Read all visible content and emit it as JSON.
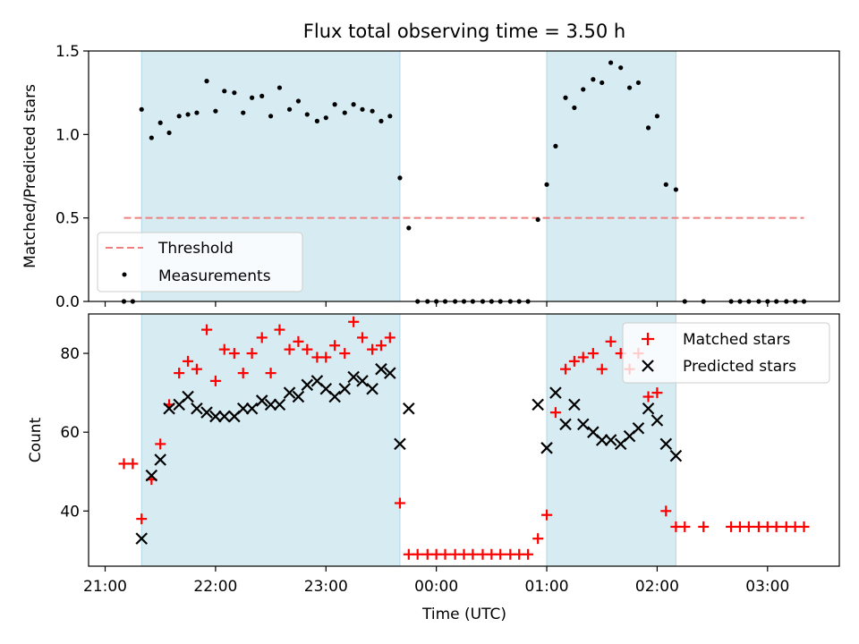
{
  "figure": {
    "title": "Flux total observing time = 3.50 h",
    "xlabel": "Time (UTC)",
    "x_tick_labels": [
      "21:00",
      "22:00",
      "23:00",
      "00:00",
      "01:00",
      "02:00",
      "03:00"
    ],
    "colors": {
      "shade": "#add8e6",
      "threshold": "#f08080",
      "measurement": "#000000",
      "matched": "#ff0000",
      "predicted": "#000000"
    }
  },
  "chart_data": [
    {
      "type": "scatter",
      "ylabel": "Matched/Predicted stars",
      "x_unit": "hours since 21:00 UTC",
      "xlim": [
        -0.15,
        6.65
      ],
      "ylim": [
        0,
        1.5
      ],
      "y_tick_labels": [
        "0.0",
        "0.5",
        "1.0",
        "1.5"
      ],
      "y_ticks": [
        0,
        0.5,
        1.0,
        1.5
      ],
      "shaded_spans": [
        [
          0.33,
          2.67
        ],
        [
          4.0,
          5.17
        ]
      ],
      "threshold": {
        "name": "Threshold",
        "value": 0.5,
        "x_range": [
          0.17,
          6.33
        ]
      },
      "legend": {
        "position": "lower-left",
        "entries": [
          "Threshold",
          "Measurements"
        ]
      },
      "series": [
        {
          "name": "Measurements",
          "marker": "dot",
          "x": [
            0.17,
            0.25,
            0.33,
            0.42,
            0.5,
            0.58,
            0.67,
            0.75,
            0.83,
            0.92,
            1.0,
            1.08,
            1.17,
            1.25,
            1.33,
            1.42,
            1.5,
            1.58,
            1.67,
            1.75,
            1.83,
            1.92,
            2.0,
            2.08,
            2.17,
            2.25,
            2.33,
            2.42,
            2.5,
            2.58,
            2.67,
            2.75,
            2.83,
            2.92,
            3.0,
            3.08,
            3.17,
            3.25,
            3.33,
            3.42,
            3.5,
            3.58,
            3.67,
            3.75,
            3.83,
            3.92,
            4.0,
            4.08,
            4.17,
            4.25,
            4.33,
            4.42,
            4.5,
            4.58,
            4.67,
            4.75,
            4.83,
            4.92,
            5.0,
            5.08,
            5.17,
            5.25,
            5.42,
            5.67,
            5.75,
            5.83,
            5.92,
            6.0,
            6.08,
            6.17,
            6.25,
            6.33
          ],
          "y": [
            0,
            0,
            1.15,
            0.98,
            1.07,
            1.01,
            1.11,
            1.12,
            1.13,
            1.32,
            1.14,
            1.26,
            1.25,
            1.13,
            1.22,
            1.23,
            1.11,
            1.28,
            1.15,
            1.2,
            1.12,
            1.08,
            1.1,
            1.18,
            1.13,
            1.18,
            1.15,
            1.14,
            1.08,
            1.11,
            0.74,
            0.44,
            0,
            0,
            0,
            0,
            0,
            0,
            0,
            0,
            0,
            0,
            0,
            0,
            0,
            0.49,
            0.7,
            0.93,
            1.22,
            1.16,
            1.27,
            1.33,
            1.31,
            1.43,
            1.4,
            1.28,
            1.31,
            1.04,
            1.11,
            0.7,
            0.67,
            0,
            0,
            0,
            0,
            0,
            0,
            0,
            0,
            0,
            0,
            0
          ]
        }
      ]
    },
    {
      "type": "scatter",
      "ylabel": "Count",
      "x_unit": "hours since 21:00 UTC",
      "xlim": [
        -0.15,
        6.65
      ],
      "ylim": [
        26,
        90
      ],
      "y_tick_labels": [
        "40",
        "60",
        "80"
      ],
      "y_ticks": [
        40,
        60,
        80
      ],
      "shaded_spans": [
        [
          0.33,
          2.67
        ],
        [
          4.0,
          5.17
        ]
      ],
      "legend": {
        "position": "top-right",
        "entries": [
          "Matched stars",
          "Predicted stars"
        ]
      },
      "series": [
        {
          "name": "Matched stars",
          "marker": "plus",
          "x": [
            0.17,
            0.25,
            0.33,
            0.42,
            0.5,
            0.58,
            0.67,
            0.75,
            0.83,
            0.92,
            1.0,
            1.08,
            1.17,
            1.25,
            1.33,
            1.42,
            1.5,
            1.58,
            1.67,
            1.75,
            1.83,
            1.92,
            2.0,
            2.08,
            2.17,
            2.25,
            2.33,
            2.42,
            2.5,
            2.58,
            2.67,
            2.75,
            2.83,
            2.92,
            3.0,
            3.08,
            3.17,
            3.25,
            3.33,
            3.42,
            3.5,
            3.58,
            3.67,
            3.75,
            3.83,
            3.92,
            4.0,
            4.08,
            4.17,
            4.25,
            4.33,
            4.42,
            4.5,
            4.58,
            4.67,
            4.75,
            4.83,
            4.92,
            5.0,
            5.08,
            5.17,
            5.25,
            5.42,
            5.67,
            5.75,
            5.83,
            5.92,
            6.0,
            6.08,
            6.17,
            6.25,
            6.33
          ],
          "y": [
            52,
            52,
            38,
            48,
            57,
            67,
            75,
            78,
            76,
            86,
            73,
            81,
            80,
            75,
            80,
            84,
            75,
            86,
            81,
            83,
            81,
            79,
            79,
            82,
            80,
            88,
            84,
            81,
            82,
            84,
            42,
            29,
            29,
            29,
            29,
            29,
            29,
            29,
            29,
            29,
            29,
            29,
            29,
            29,
            29,
            33,
            39,
            65,
            76,
            78,
            79,
            80,
            76,
            83,
            80,
            76,
            80,
            69,
            70,
            40,
            36,
            36,
            36,
            36,
            36,
            36,
            36,
            36,
            36,
            36,
            36,
            36
          ]
        },
        {
          "name": "Predicted stars",
          "marker": "x",
          "x": [
            0.33,
            0.42,
            0.5,
            0.58,
            0.67,
            0.75,
            0.83,
            0.92,
            1.0,
            1.08,
            1.17,
            1.25,
            1.33,
            1.42,
            1.5,
            1.58,
            1.67,
            1.75,
            1.83,
            1.92,
            2.0,
            2.08,
            2.17,
            2.25,
            2.33,
            2.42,
            2.5,
            2.58,
            2.67,
            2.75,
            3.92,
            4.0,
            4.08,
            4.17,
            4.25,
            4.33,
            4.42,
            4.5,
            4.58,
            4.67,
            4.75,
            4.83,
            4.92,
            5.0,
            5.08,
            5.17
          ],
          "y": [
            33,
            49,
            53,
            66,
            67,
            69,
            66,
            65,
            64,
            64,
            64,
            66,
            66,
            68,
            67,
            67,
            70,
            69,
            72,
            73,
            71,
            69,
            71,
            74,
            73,
            71,
            76,
            75,
            57,
            66,
            67,
            56,
            70,
            62,
            67,
            62,
            60,
            58,
            58,
            57,
            59,
            61,
            66,
            63,
            57,
            54
          ]
        }
      ]
    }
  ]
}
